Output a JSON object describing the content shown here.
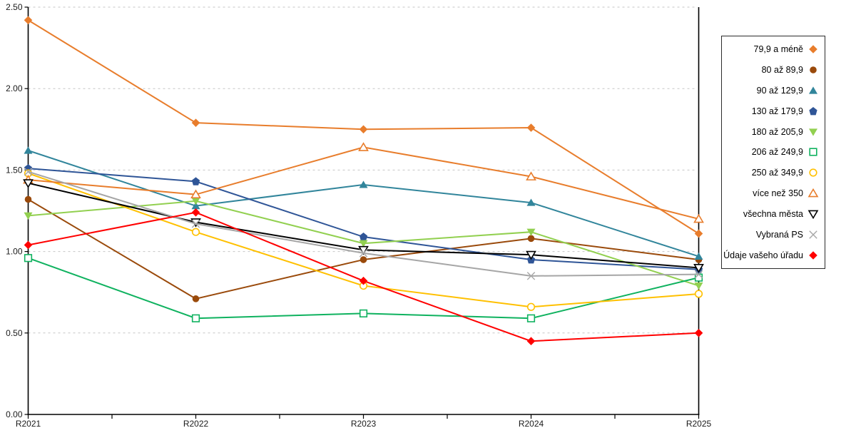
{
  "chart_data": {
    "type": "line",
    "title": "",
    "xlabel": "",
    "ylabel": "",
    "categories": [
      "R2021",
      "R2022",
      "R2023",
      "R2024",
      "R2025"
    ],
    "ylim": [
      0,
      2.5
    ],
    "y_ticks": [
      {
        "label": "0.00",
        "value": 0.0
      },
      {
        "label": "0.50",
        "value": 0.5
      },
      {
        "label": "1.00",
        "value": 1.0
      },
      {
        "label": "1.50",
        "value": 1.5
      },
      {
        "label": "2.00",
        "value": 2.0
      },
      {
        "label": "2.50",
        "value": 2.5
      }
    ],
    "grid": "horizontal-dashed",
    "grid_color": "#c6c6c6",
    "axis_color": "#000000",
    "legend_position": "right",
    "legend_border_color": "#2b2b2b",
    "series": [
      {
        "name": "79,9 a méně",
        "color": "#E87D2C",
        "marker": "diamond",
        "fill": "filled",
        "values": [
          2.42,
          1.79,
          1.75,
          1.76,
          1.11
        ]
      },
      {
        "name": "80 až 89,9",
        "color": "#9A4A0B",
        "marker": "circle",
        "fill": "filled",
        "values": [
          1.32,
          0.71,
          0.95,
          1.08,
          0.95
        ]
      },
      {
        "name": "90 až 129,9",
        "color": "#31859B",
        "marker": "triangle-up",
        "fill": "filled",
        "values": [
          1.62,
          1.28,
          1.41,
          1.3,
          0.97
        ]
      },
      {
        "name": "130 až 179,9",
        "color": "#2F5597",
        "marker": "pentagon",
        "fill": "filled",
        "values": [
          1.51,
          1.43,
          1.09,
          0.95,
          0.89
        ]
      },
      {
        "name": "180 až 205,9",
        "color": "#92D050",
        "marker": "triangle-down",
        "fill": "filled",
        "values": [
          1.22,
          1.31,
          1.05,
          1.12,
          0.79
        ]
      },
      {
        "name": "206 až 249,9",
        "color": "#0FB25F",
        "marker": "square",
        "fill": "open",
        "values": [
          0.96,
          0.59,
          0.62,
          0.59,
          0.84
        ]
      },
      {
        "name": "250 až 349,9",
        "color": "#FFC000",
        "marker": "circle",
        "fill": "open",
        "values": [
          1.48,
          1.12,
          0.79,
          0.66,
          0.74
        ]
      },
      {
        "name": "více než 350",
        "color": "#E87D2C",
        "marker": "triangle-up",
        "fill": "open",
        "values": [
          1.44,
          1.35,
          1.64,
          1.46,
          1.2
        ]
      },
      {
        "name": "všechna města",
        "color": "#000000",
        "marker": "triangle-down",
        "fill": "open",
        "values": [
          1.42,
          1.18,
          1.01,
          0.98,
          0.9
        ]
      },
      {
        "name": "Vybraná PS",
        "color": "#A6A6A6",
        "marker": "x",
        "fill": "open",
        "values": [
          1.49,
          1.17,
          0.99,
          0.85,
          0.86
        ]
      },
      {
        "name": "Údaje vašeho úřadu",
        "color": "#FF0000",
        "marker": "diamond",
        "fill": "filled",
        "values": [
          1.04,
          1.24,
          0.82,
          0.45,
          0.5
        ]
      }
    ]
  }
}
